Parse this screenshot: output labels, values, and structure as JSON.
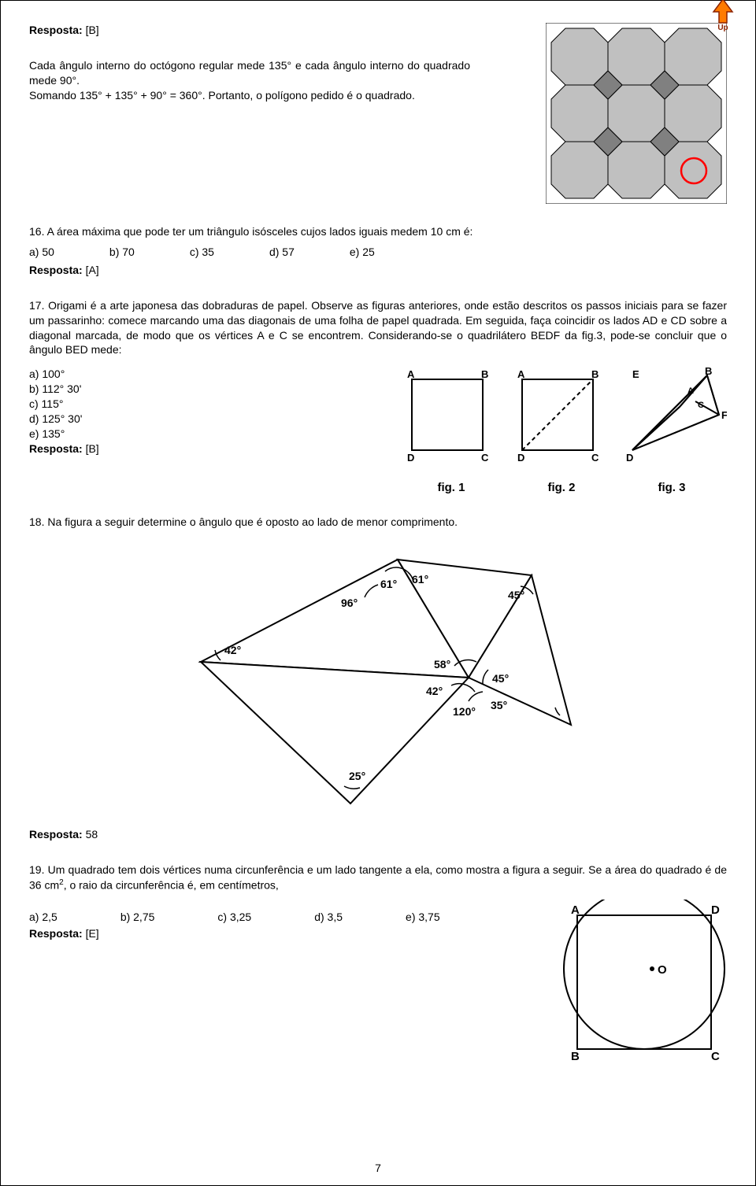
{
  "page_number": "7",
  "q15": {
    "resposta_label": "Resposta:",
    "resposta_value": "[B]",
    "explanation": "Cada ângulo interno do octógono regular mede 135° e cada ângulo interno do quadrado mede 90°.\nSomando 135° + 135° + 90° = 360°. Portanto, o polígono pedido é o quadrado.",
    "figure": {
      "type": "tessellation",
      "shape": "octagons_and_squares_3x3",
      "octagon_fill": "#c0c0c0",
      "square_fill": "#808080",
      "background": "#ffffff",
      "border_color": "#000000",
      "circle_stroke": "#ff0000",
      "circle_pos": "bottom-right-square"
    }
  },
  "q16": {
    "number": "16.",
    "text": "A área máxima que pode ter um triângulo isósceles cujos lados iguais medem 10 cm é:",
    "options": [
      "a) 50",
      "b) 70",
      "c) 35",
      "d) 57",
      "e) 25"
    ],
    "resposta_label": "Resposta:",
    "resposta_value": "[A]"
  },
  "q17": {
    "number": "17.",
    "text": "Origami é a arte japonesa das dobraduras de papel. Observe as figuras anteriores, onde estão descritos os passos iniciais para se fazer um passarinho: comece marcando uma das diagonais de uma folha de papel quadrada. Em seguida, faça coincidir os lados AD e CD sobre a diagonal marcada, de modo que os vértices A e C se encontrem. Considerando-se o quadrilátero BEDF da fig.3, pode-se concluir que o ângulo BED mede:",
    "options": [
      "a) 100°",
      "b) 112° 30'",
      "c) 115°",
      "d) 125° 30'",
      "e) 135°"
    ],
    "resposta_label": "Resposta:",
    "resposta_value": "[B]",
    "figure": {
      "type": "origami_steps",
      "figs": [
        {
          "label": "fig. 1",
          "vertices": [
            "A",
            "B",
            "C",
            "D"
          ],
          "shape": "square"
        },
        {
          "label": "fig. 2",
          "vertices": [
            "A",
            "B",
            "C",
            "D"
          ],
          "shape": "square_with_dashed_diagonal"
        },
        {
          "label": "fig. 3",
          "vertices": [
            "E",
            "B",
            "F",
            "D",
            "A",
            "C"
          ],
          "shape": "kite"
        }
      ],
      "stroke": "#000000",
      "fill": "#ffffff",
      "font_size": 13
    }
  },
  "q18": {
    "number": "18.",
    "text": "Na figura a seguir determine o ângulo que é oposto ao lado de menor comprimento.",
    "resposta_label": "Resposta:",
    "resposta_value": "58",
    "figure": {
      "type": "composite_triangles",
      "angles": [
        "61°",
        "61°",
        "45°",
        "96°",
        "42°",
        "58°",
        "42°",
        "120°",
        "45°",
        "35°",
        "25°"
      ],
      "stroke": "#000000",
      "fill": "#ffffff",
      "font_size": 13
    }
  },
  "q19": {
    "number": "19.",
    "text_part1": "Um quadrado tem dois vértices numa circunferência e um lado tangente a ela, como mostra a figura a seguir. Se a área do quadrado é de 36 cm",
    "text_sup": "2",
    "text_part2": ", o raio da circunferência é, em centímetros,",
    "options": [
      "a) 2,5",
      "b) 2,75",
      "c) 3,25",
      "d) 3,5",
      "e) 3,75"
    ],
    "resposta_label": "Resposta:",
    "resposta_value": "[E]",
    "figure": {
      "type": "square_with_circle",
      "vertices": [
        "A",
        "D",
        "B",
        "C"
      ],
      "center_label": "O",
      "stroke": "#000000",
      "fill": "#ffffff",
      "font_size": 14
    }
  }
}
